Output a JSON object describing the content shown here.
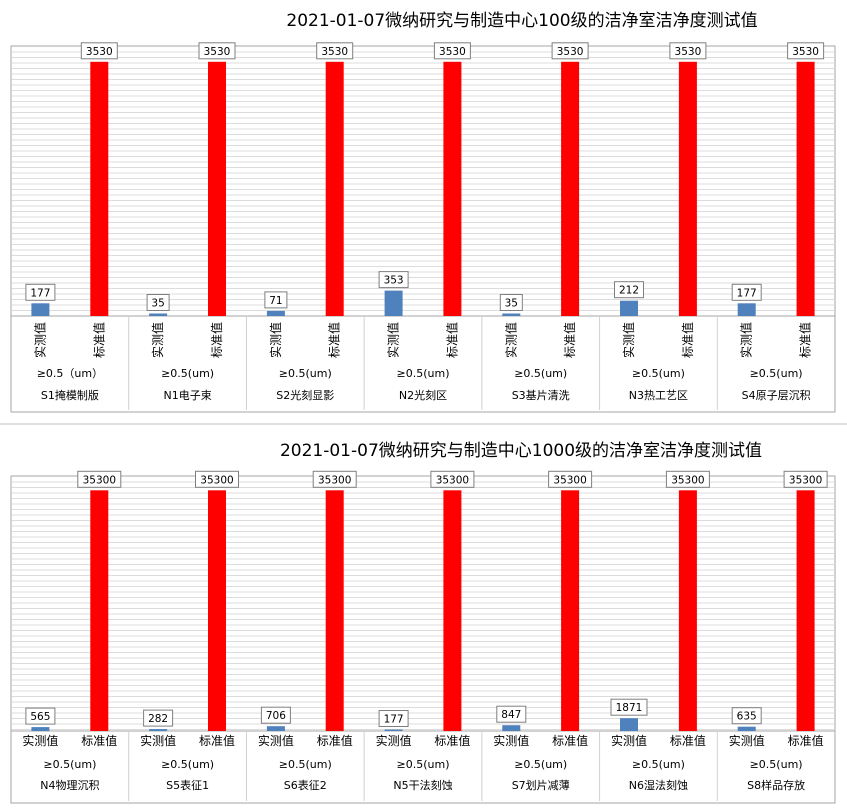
{
  "chart_data": [
    {
      "type": "bar",
      "title": "2021-01-07微纳研究与制造中心100级的洁净室洁净度测试值",
      "series_labels": [
        "实测值",
        "标准值"
      ],
      "series_colors": [
        "#4f81bd",
        "#ff0000"
      ],
      "vertical_series_labels": true,
      "categories": [
        {
          "size": "≥0.5（um）",
          "room": "S1掩模制版",
          "values": [
            177,
            3530
          ]
        },
        {
          "size": "≥0.5(um)",
          "room": "N1电子束",
          "values": [
            35,
            3530
          ]
        },
        {
          "size": "≥0.5(um)",
          "room": "S2光刻显影",
          "values": [
            71,
            3530
          ]
        },
        {
          "size": "≥0.5(um)",
          "room": "N2光刻区",
          "values": [
            353,
            3530
          ]
        },
        {
          "size": "≥0.5(um)",
          "room": "S3基片清洗",
          "values": [
            35,
            3530
          ]
        },
        {
          "size": "≥0.5(um)",
          "room": "N3热工艺区",
          "values": [
            212,
            3530
          ]
        },
        {
          "size": "≥0.5(um)",
          "room": "S4原子层沉积",
          "values": [
            177,
            3530
          ]
        }
      ],
      "ylim": [
        0,
        3750
      ],
      "grid": true,
      "legend": "none"
    },
    {
      "type": "bar",
      "title": "2021-01-07微纳研究与制造中心1000级的洁净室洁净度测试值",
      "series_labels": [
        "实测值",
        "标准值"
      ],
      "series_colors": [
        "#4f81bd",
        "#ff0000"
      ],
      "vertical_series_labels": false,
      "categories": [
        {
          "size": "≥0.5(um)",
          "room": "N4物理沉积",
          "values": [
            565,
            35300
          ]
        },
        {
          "size": "≥0.5(um)",
          "room": "S5表征1",
          "values": [
            282,
            35300
          ]
        },
        {
          "size": "≥0.5(um)",
          "room": "S6表征2",
          "values": [
            706,
            35300
          ]
        },
        {
          "size": "≥0.5(um)",
          "room": "N5干法刻蚀",
          "values": [
            177,
            35300
          ]
        },
        {
          "size": "≥0.5(um)",
          "room": "S7划片减薄",
          "values": [
            847,
            35300
          ]
        },
        {
          "size": "≥0.5(um)",
          "room": "N6湿法刻蚀",
          "values": [
            1871,
            35300
          ]
        },
        {
          "size": "≥0.5(um)",
          "room": "S8样品存放",
          "values": [
            635,
            35300
          ]
        }
      ],
      "ylim": [
        0,
        37400
      ],
      "grid": true,
      "legend": "none"
    }
  ]
}
